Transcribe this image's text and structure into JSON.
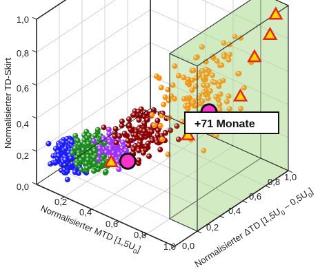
{
  "chart_data": {
    "type": "scatter",
    "dimensions": 3,
    "title": "",
    "axes": {
      "z": {
        "label": "Normalisierter TD-Skirt",
        "ticks": [
          "0,0",
          "0,2",
          "0,4",
          "0,6",
          "0,8",
          "1,0"
        ],
        "range": [
          0,
          1
        ]
      },
      "x": {
        "label_main": "Normalisierter MTD [1,5U",
        "label_sub": "0",
        "label_end": "]",
        "ticks": [
          "0,2",
          "0,4",
          "0,6",
          "0,8",
          "1,0"
        ],
        "range": [
          0,
          1
        ]
      },
      "y": {
        "label_main": "Normalisierter ΔTD [1,5U",
        "label_sub1": "0",
        "label_mid": " – 0,5U",
        "label_sub2": "0",
        "label_end": "]",
        "ticks": [
          "0,0",
          "0,2",
          "0,4",
          "0,6",
          "0,8",
          "1,0"
        ],
        "range": [
          0,
          1
        ]
      }
    },
    "grid": true,
    "highlight_region": {
      "x": [
        0.8,
        1.0
      ],
      "y": [
        0.2,
        1.0
      ],
      "z": [
        0.0,
        1.0
      ],
      "color": "#a9d98a"
    },
    "series": [
      {
        "color": "#1a1aff",
        "cluster": {
          "x": [
            0.02,
            0.3
          ],
          "y": [
            0.0,
            0.2
          ],
          "z": [
            0.05,
            0.3
          ]
        },
        "count": 220
      },
      {
        "color": "#1a8a1a",
        "cluster": {
          "x": [
            0.15,
            0.45
          ],
          "y": [
            0.0,
            0.25
          ],
          "z": [
            0.1,
            0.38
          ]
        },
        "count": 220
      },
      {
        "color": "#9b30ff",
        "cluster": {
          "x": [
            0.3,
            0.6
          ],
          "y": [
            0.0,
            0.3
          ],
          "z": [
            0.2,
            0.45
          ]
        },
        "count": 70
      },
      {
        "color": "#8b0000",
        "cluster": {
          "x": [
            0.35,
            0.75
          ],
          "y": [
            0.0,
            0.55
          ],
          "z": [
            0.25,
            0.55
          ]
        },
        "count": 120
      },
      {
        "color": "#ff8c00",
        "cluster": {
          "x": [
            0.5,
            1.0
          ],
          "y": [
            0.1,
            1.0
          ],
          "z": [
            0.3,
            0.9
          ]
        },
        "count": 120
      }
    ],
    "markers": [
      {
        "type": "triangle",
        "x": 0.5,
        "y": 0.05,
        "z": 0.3
      },
      {
        "type": "triangle",
        "x": 0.85,
        "y": 0.3,
        "z": 0.48
      },
      {
        "type": "triangle",
        "x": 0.9,
        "y": 0.7,
        "z": 0.55
      },
      {
        "type": "triangle",
        "x": 0.92,
        "y": 0.8,
        "z": 0.75
      },
      {
        "type": "triangle",
        "x": 0.95,
        "y": 0.9,
        "z": 0.85
      },
      {
        "type": "triangle",
        "x": 0.95,
        "y": 0.95,
        "z": 0.95
      },
      {
        "type": "circle",
        "color": "#ff33cc",
        "x": 0.62,
        "y": 0.05,
        "z": 0.35
      },
      {
        "type": "circle",
        "color": "#ff33cc",
        "x": 0.92,
        "y": 0.4,
        "z": 0.6
      }
    ],
    "annotation": {
      "text": "+71 Monate"
    }
  }
}
